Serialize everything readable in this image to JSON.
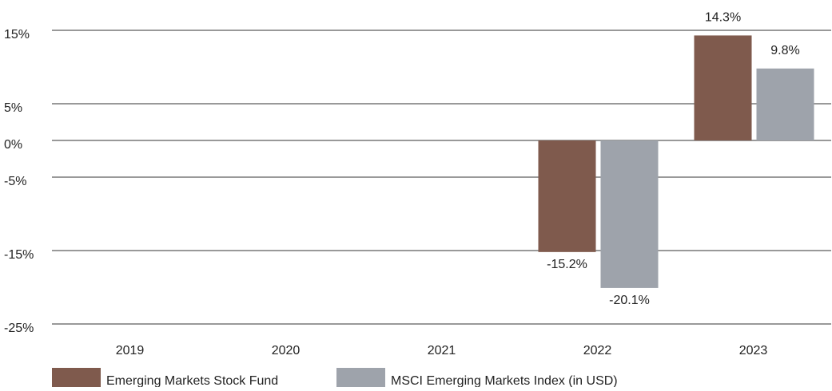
{
  "chart_data": {
    "type": "bar",
    "categories": [
      "2019",
      "2020",
      "2021",
      "2022",
      "2023"
    ],
    "series": [
      {
        "name": "Emerging Markets Stock Fund",
        "color": "#7f5a4d",
        "values": [
          null,
          null,
          null,
          -15.2,
          14.3
        ],
        "value_labels": [
          null,
          null,
          null,
          "-15.2%",
          "14.3%"
        ]
      },
      {
        "name": "MSCI Emerging Markets Index (in USD)",
        "color": "#9ea3ab",
        "values": [
          null,
          null,
          null,
          -20.1,
          9.8
        ],
        "value_labels": [
          null,
          null,
          null,
          "-20.1%",
          "9.8%"
        ]
      }
    ],
    "ylim": [
      -25,
      15
    ],
    "yticks": [
      {
        "value": 15,
        "label": "15%"
      },
      {
        "value": 5,
        "label": "5%"
      },
      {
        "value": 0,
        "label": "0%"
      },
      {
        "value": -5,
        "label": "-5%"
      },
      {
        "value": -15,
        "label": "-15%"
      },
      {
        "value": -25,
        "label": "-25%"
      }
    ],
    "grid": true,
    "legend": "bottom"
  }
}
